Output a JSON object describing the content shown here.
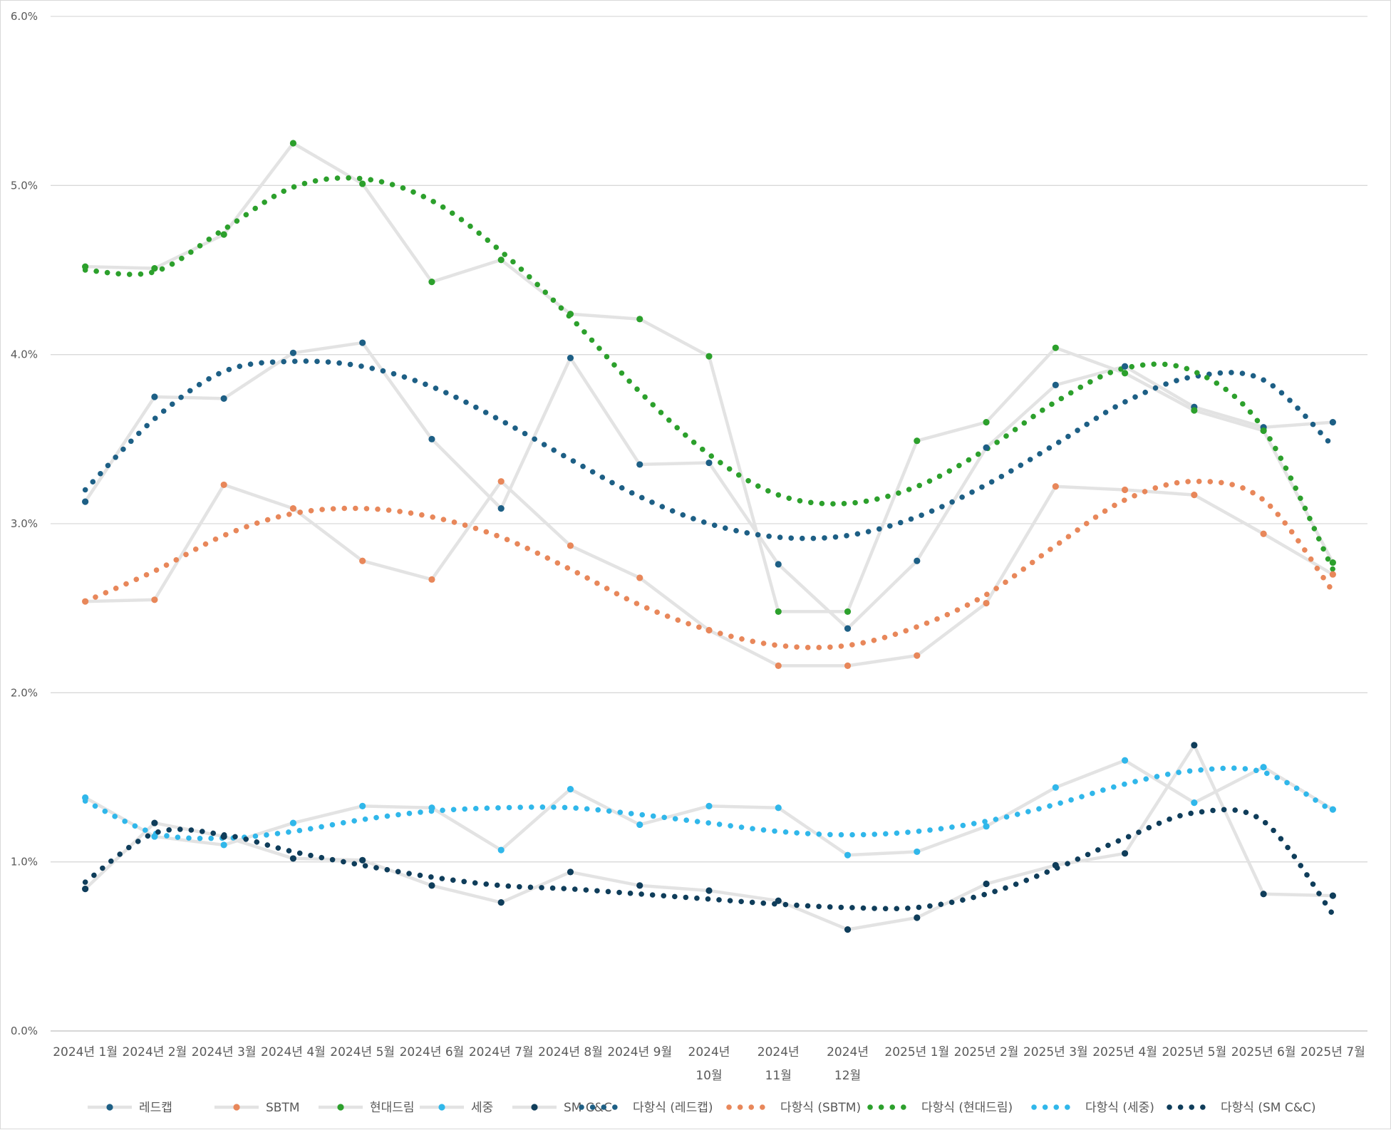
{
  "chart_data": {
    "type": "line",
    "title": "",
    "xlabel": "",
    "ylabel": "",
    "ylim": [
      0,
      6
    ],
    "y_ticks": [
      "0.0%",
      "1.0%",
      "2.0%",
      "3.0%",
      "4.0%",
      "5.0%",
      "6.0%"
    ],
    "grid": "horizontal",
    "legend_position": "bottom",
    "categories": [
      [
        "2024년 1월"
      ],
      [
        "2024년 2월"
      ],
      [
        "2024년 3월"
      ],
      [
        "2024년 4월"
      ],
      [
        "2024년 5월"
      ],
      [
        "2024년 6월"
      ],
      [
        "2024년 7월"
      ],
      [
        "2024년 8월"
      ],
      [
        "2024년 9월"
      ],
      [
        "2024년",
        "10월"
      ],
      [
        "2024년",
        "11월"
      ],
      [
        "2024년",
        "12월"
      ],
      [
        "2025년 1월"
      ],
      [
        "2025년 2월"
      ],
      [
        "2025년 3월"
      ],
      [
        "2025년 4월"
      ],
      [
        "2025년 5월"
      ],
      [
        "2025년 6월"
      ],
      [
        "2025년 7월"
      ]
    ],
    "series": [
      {
        "name": "레드캡",
        "color": "#1d5f85",
        "values": [
          3.13,
          3.75,
          3.74,
          4.01,
          4.07,
          3.5,
          3.09,
          3.98,
          3.35,
          3.36,
          2.76,
          2.38,
          2.78,
          3.45,
          3.82,
          3.93,
          3.69,
          3.57,
          3.6
        ]
      },
      {
        "name": "SBTM",
        "color": "#e8875a",
        "values": [
          2.54,
          2.55,
          3.23,
          3.09,
          2.78,
          2.67,
          3.25,
          2.87,
          2.68,
          2.37,
          2.16,
          2.16,
          2.22,
          2.53,
          3.22,
          3.2,
          3.17,
          2.94,
          2.7
        ]
      },
      {
        "name": "현대드림",
        "color": "#2ca02c",
        "values": [
          4.52,
          4.51,
          4.71,
          5.25,
          5.01,
          4.43,
          4.56,
          4.24,
          4.21,
          3.99,
          2.48,
          2.48,
          3.49,
          3.6,
          4.04,
          3.89,
          3.67,
          3.55,
          2.77
        ]
      },
      {
        "name": "세중",
        "color": "#30b7ea",
        "values": [
          1.38,
          1.15,
          1.1,
          1.23,
          1.33,
          1.32,
          1.07,
          1.43,
          1.22,
          1.33,
          1.32,
          1.04,
          1.06,
          1.21,
          1.44,
          1.6,
          1.35,
          1.56,
          1.31
        ]
      },
      {
        "name": "SM C&C",
        "color": "#0f3d5a",
        "values": [
          0.84,
          1.23,
          1.15,
          1.02,
          1.01,
          0.86,
          0.76,
          0.94,
          0.86,
          0.83,
          0.77,
          0.6,
          0.67,
          0.87,
          0.98,
          1.05,
          1.69,
          0.81,
          0.8
        ]
      }
    ],
    "trendlines": [
      {
        "name": "다항식 (레드캡)",
        "color": "#1d5f85",
        "series": "레드캡",
        "kind": "polynomial"
      },
      {
        "name": "다항식 (SBTM)",
        "color": "#e8875a",
        "series": "SBTM",
        "kind": "polynomial"
      },
      {
        "name": "다항식 (현대드림)",
        "color": "#2ca02c",
        "series": "현대드림",
        "kind": "polynomial"
      },
      {
        "name": "다항식 (세중)",
        "color": "#30b7ea",
        "series": "세중",
        "kind": "polynomial"
      },
      {
        "name": "다항식 (SM C&C)",
        "color": "#0f3d5a",
        "series": "SM C&C",
        "kind": "polynomial"
      }
    ],
    "trend_values": [
      [
        3.2,
        3.62,
        3.9,
        3.96,
        3.93,
        3.81,
        3.61,
        3.38,
        3.16,
        3.0,
        2.92,
        2.93,
        3.04,
        3.23,
        3.47,
        3.72,
        3.87,
        3.85,
        3.46
      ],
      [
        2.54,
        2.72,
        2.93,
        3.06,
        3.09,
        3.04,
        2.92,
        2.73,
        2.52,
        2.37,
        2.28,
        2.28,
        2.39,
        2.58,
        2.87,
        3.14,
        3.25,
        3.14,
        2.6
      ],
      [
        4.5,
        4.49,
        4.74,
        4.99,
        5.04,
        4.91,
        4.61,
        4.22,
        3.78,
        3.41,
        3.17,
        3.12,
        3.22,
        3.44,
        3.72,
        3.92,
        3.9,
        3.56,
        2.73
      ],
      [
        1.36,
        1.17,
        1.14,
        1.18,
        1.25,
        1.3,
        1.32,
        1.32,
        1.28,
        1.23,
        1.18,
        1.16,
        1.18,
        1.24,
        1.34,
        1.46,
        1.54,
        1.53,
        1.3
      ],
      [
        0.88,
        1.17,
        1.16,
        1.06,
        0.98,
        0.91,
        0.86,
        0.84,
        0.81,
        0.78,
        0.75,
        0.73,
        0.73,
        0.81,
        0.96,
        1.14,
        1.29,
        1.24,
        0.69
      ]
    ],
    "legend": [
      "레드캡",
      "SBTM",
      "현대드림",
      "세중",
      "SM C&C",
      "다항식 (레드캡)",
      "다항식 (SBTM)",
      "다항식 (현대드림)",
      "다항식 (세중)",
      "다항식 (SM C&C)"
    ]
  }
}
